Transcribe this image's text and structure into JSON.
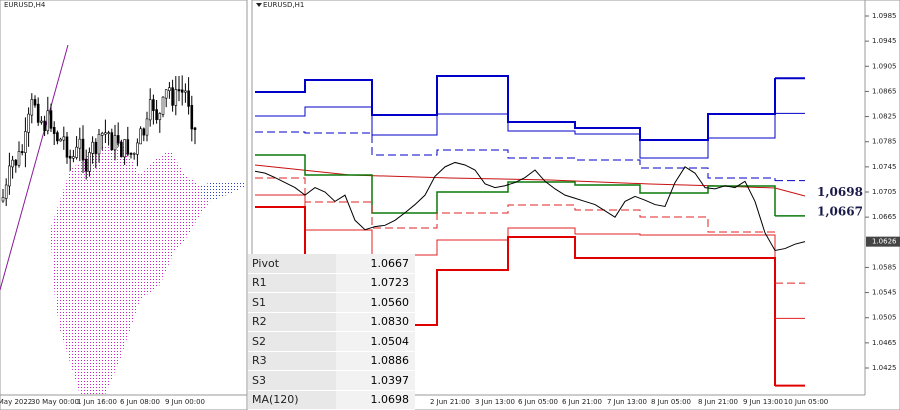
{
  "left_chart": {
    "title": "EURUSD,H4",
    "time_labels": [
      "May 2022",
      "30 May 00:00",
      "1 Jun 16:00",
      "6 Jun 08:00",
      "9 Jun 00:00"
    ]
  },
  "right_chart": {
    "title": "EURUSD,H1",
    "price_ticks": [
      1.0985,
      1.0945,
      1.0905,
      1.0865,
      1.0825,
      1.0785,
      1.0745,
      1.0705,
      1.0665,
      1.0585,
      1.0545,
      1.0505,
      1.0465,
      1.0425
    ],
    "current_price": 1.0626,
    "time_labels": [
      "2 Jun 21:00",
      "3 Jun 13:00",
      "6 Jun 05:00",
      "6 Jun 21:00",
      "7 Jun 13:00",
      "8 Jun 05:00",
      "8 Jun 21:00",
      "9 Jun 13:00",
      "10 Jun 05:00"
    ],
    "annotations": [
      "1,0698",
      "1,0667"
    ],
    "closes": [
      1.0738,
      1.0735,
      1.0728,
      1.072,
      1.0712,
      1.07,
      1.0712,
      1.0705,
      1.069,
      1.07,
      1.066,
      1.0645,
      1.065,
      1.0652,
      1.066,
      1.0672,
      1.0685,
      1.07,
      1.073,
      1.0745,
      1.0752,
      1.0748,
      1.074,
      1.0718,
      1.0712,
      1.0715,
      1.072,
      1.0728,
      1.074,
      1.0722,
      1.071,
      1.07,
      1.0695,
      1.069,
      1.0685,
      1.0675,
      1.0665,
      1.069,
      1.0698,
      1.0692,
      1.0685,
      1.0682,
      1.072,
      1.0745,
      1.0735,
      1.0712,
      1.071,
      1.0715,
      1.0712,
      1.0722,
      1.069,
      1.064,
      1.0612,
      1.0615,
      1.0622,
      1.0626
    ]
  },
  "pivot_table": {
    "rows": [
      [
        "Pivot",
        "1.0667"
      ],
      [
        "R1",
        "1.0723"
      ],
      [
        "S1",
        "1.0560"
      ],
      [
        "R2",
        "1.0830"
      ],
      [
        "S2",
        "1.0504"
      ],
      [
        "R3",
        "1.0886"
      ],
      [
        "S3",
        "1.0397"
      ],
      [
        "MA(120)",
        "1.0698"
      ]
    ]
  }
}
